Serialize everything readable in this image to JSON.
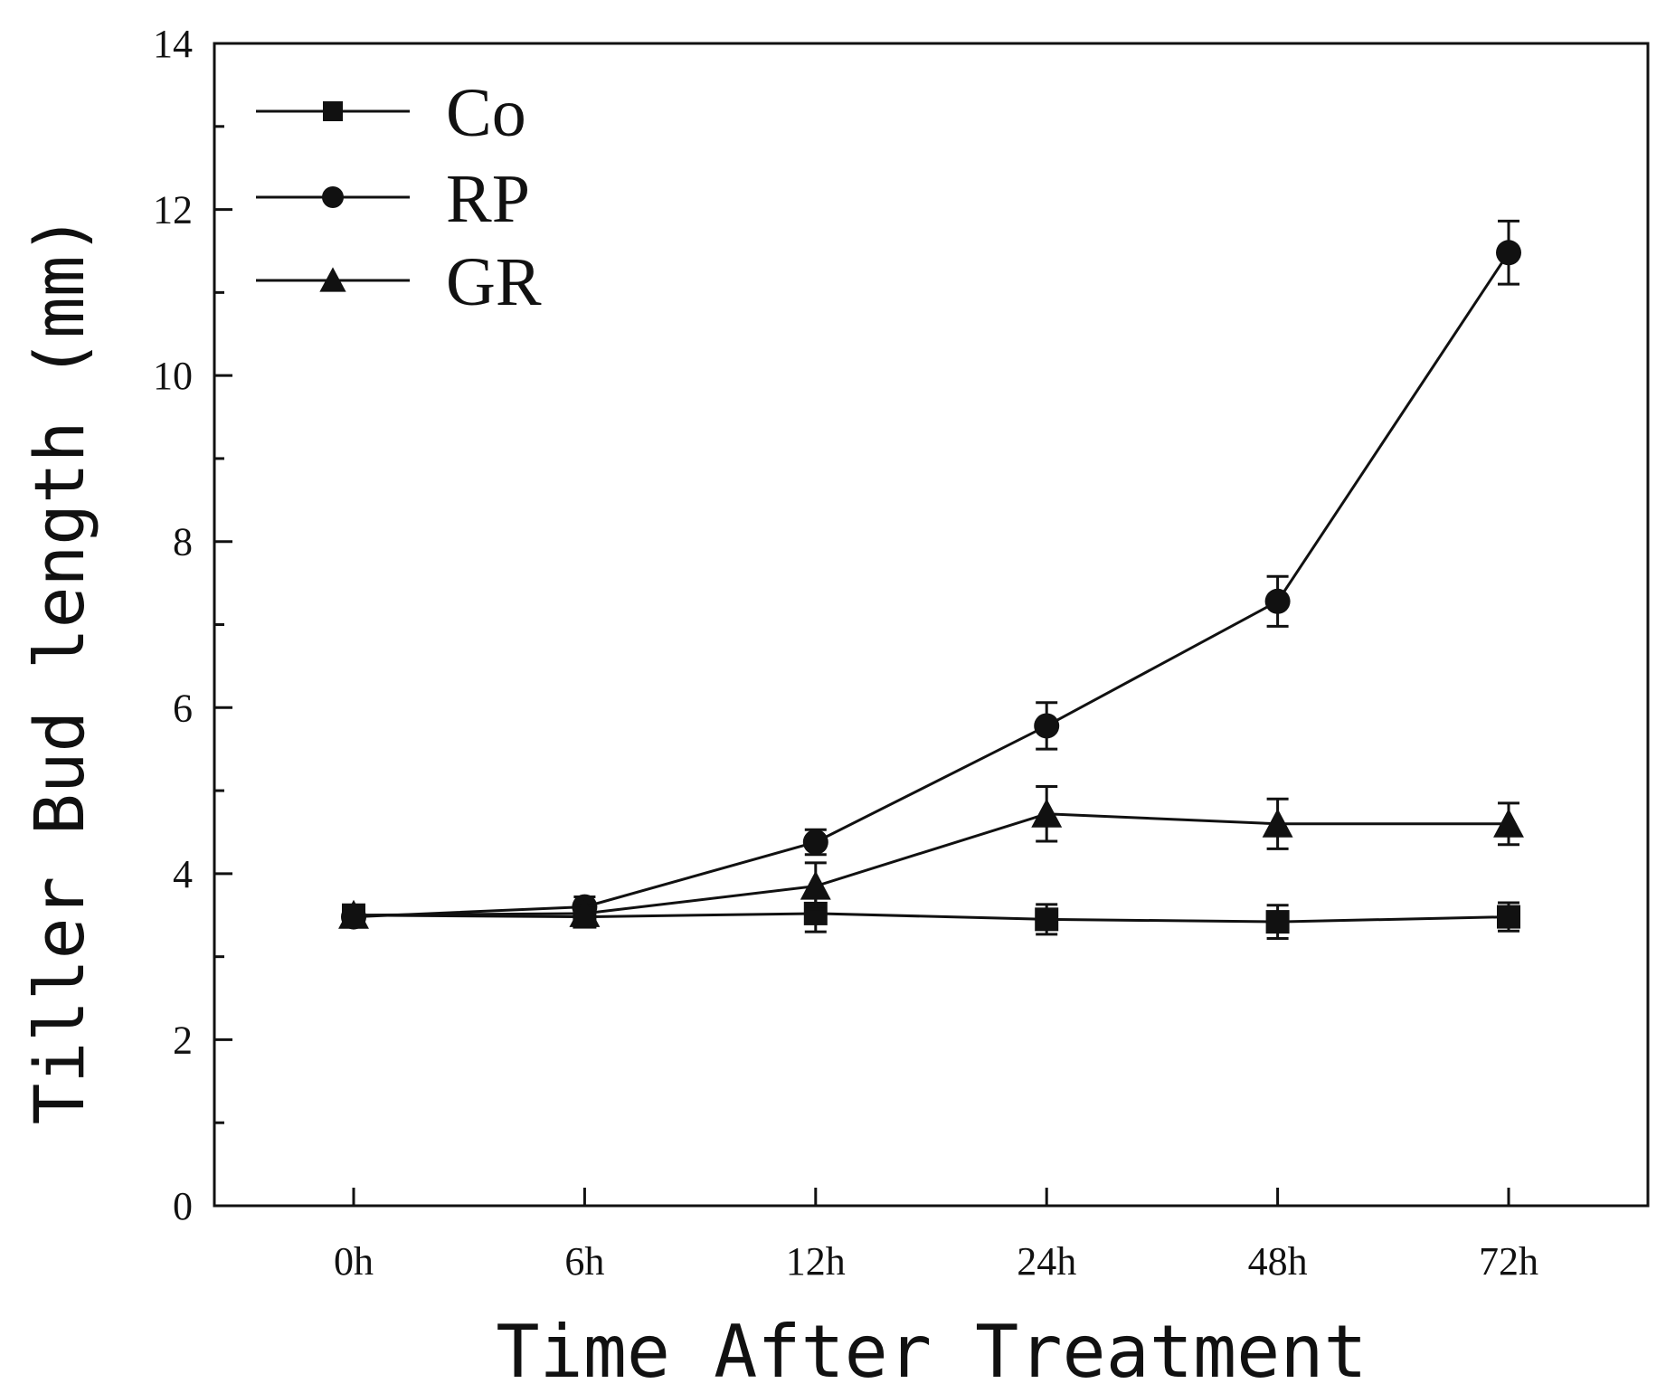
{
  "chart_data": {
    "type": "line",
    "title": "",
    "xlabel": "Time After Treatment",
    "ylabel": "Tiller Bud length (mm)",
    "categories": [
      "0h",
      "6h",
      "12h",
      "24h",
      "48h",
      "72h"
    ],
    "ylim": [
      0,
      14
    ],
    "yticks": [
      0,
      2,
      4,
      6,
      8,
      10,
      12,
      14
    ],
    "grid": false,
    "legend_position": "top-left",
    "series": [
      {
        "name": "Co",
        "marker": "square",
        "values": [
          3.5,
          3.48,
          3.52,
          3.45,
          3.42,
          3.48
        ],
        "errors": [
          0.08,
          0.1,
          0.22,
          0.18,
          0.2,
          0.17
        ]
      },
      {
        "name": "RP",
        "marker": "circle",
        "values": [
          3.48,
          3.6,
          4.38,
          5.78,
          7.28,
          11.48
        ],
        "errors": [
          0.08,
          0.12,
          0.15,
          0.28,
          0.3,
          0.38
        ]
      },
      {
        "name": "GR",
        "marker": "triangle",
        "values": [
          3.5,
          3.52,
          3.85,
          4.72,
          4.6,
          4.6
        ],
        "errors": [
          0.08,
          0.1,
          0.28,
          0.33,
          0.3,
          0.25
        ]
      }
    ]
  }
}
